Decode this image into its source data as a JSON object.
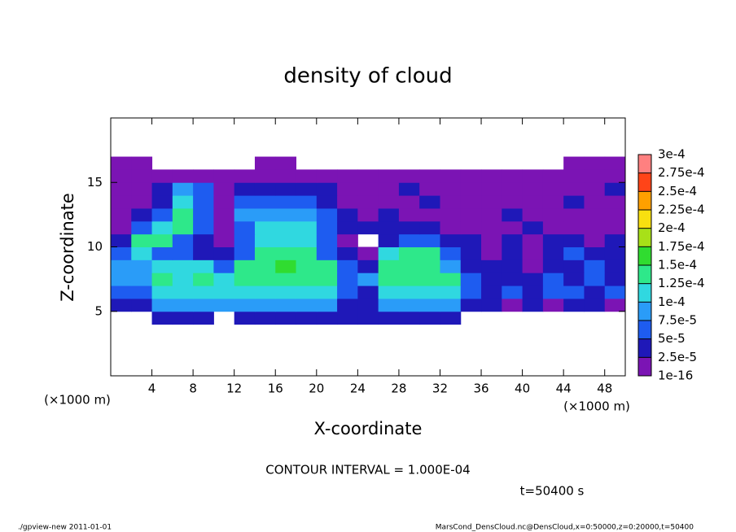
{
  "chart_data": {
    "type": "heatmap",
    "title": "density of cloud",
    "xlabel": "X-coordinate",
    "ylabel": "Z-coordinate",
    "x_unit": "(×1000 m)",
    "y_unit": "(×1000 m)",
    "contour_interval": "CONTOUR INTERVAL = 1.000E-04",
    "time_label": "t=50400 s",
    "footer_left": "./gpview-new  2011-01-01",
    "footer_right": "MarsCond_DensCloud.nc@DensCloud,x=0:50000,z=0:20000,t=50400",
    "xlim": [
      0,
      50
    ],
    "ylim": [
      0,
      20
    ],
    "xticks": [
      4,
      8,
      12,
      16,
      20,
      24,
      28,
      32,
      36,
      40,
      44,
      48
    ],
    "yticks": [
      5,
      10,
      15
    ],
    "levels": [
      {
        "value": 1e-16,
        "label": "1e-16"
      },
      {
        "value": 2.5e-05,
        "label": "2.5e-5"
      },
      {
        "value": 5e-05,
        "label": "5e-5"
      },
      {
        "value": 7.5e-05,
        "label": "7.5e-5"
      },
      {
        "value": 0.0001,
        "label": "1e-4"
      },
      {
        "value": 0.000125,
        "label": "1.25e-4"
      },
      {
        "value": 0.00015,
        "label": "1.5e-4"
      },
      {
        "value": 0.000175,
        "label": "1.75e-4"
      },
      {
        "value": 0.0002,
        "label": "2e-4"
      },
      {
        "value": 0.000225,
        "label": "2.25e-4"
      },
      {
        "value": 0.00025,
        "label": "2.5e-4"
      },
      {
        "value": 0.000275,
        "label": "2.75e-4"
      },
      {
        "value": 0.0003,
        "label": "3e-4"
      }
    ],
    "colors": [
      "#7b14b4",
      "#1f18b8",
      "#1e5cf0",
      "#2a9cf8",
      "#30d8e0",
      "#2ee88a",
      "#30dc30",
      "#a8e018",
      "#f8e010",
      "#ffa000",
      "#ff4418",
      "#ff8080"
    ],
    "x": [
      1,
      3,
      5,
      7,
      9,
      11,
      13,
      15,
      17,
      19,
      21,
      23,
      25,
      27,
      29,
      31,
      33,
      35,
      37,
      39,
      41,
      43,
      45,
      47,
      49
    ],
    "y": [
      4.5,
      5.5,
      6.5,
      7.5,
      8.5,
      9.5,
      10.5,
      11.5,
      12.5,
      13.5,
      14.5,
      15.5,
      16.5
    ],
    "z": [
      [
        null,
        null,
        3e-05,
        3e-05,
        3e-05,
        null,
        3e-05,
        3e-05,
        3e-05,
        3e-05,
        3e-05,
        3e-05,
        3e-05,
        3e-05,
        3e-05,
        3e-05,
        3e-05,
        null,
        null,
        null,
        null,
        null,
        null,
        null,
        null
      ],
      [
        3e-05,
        3e-05,
        9e-05,
        9e-05,
        9e-05,
        9e-05,
        9e-05,
        9e-05,
        9e-05,
        9e-05,
        9e-05,
        3e-05,
        3e-05,
        9e-05,
        9e-05,
        9e-05,
        9e-05,
        3e-05,
        3e-05,
        1e-05,
        3e-05,
        1e-05,
        3e-05,
        3e-05,
        1e-05
      ],
      [
        6e-05,
        6e-05,
        0.00011,
        0.00011,
        0.00011,
        0.00011,
        0.00011,
        0.00011,
        0.00011,
        0.00011,
        0.00011,
        6e-05,
        3e-05,
        0.00011,
        0.00011,
        0.00011,
        0.00011,
        6e-05,
        3e-05,
        6e-05,
        3e-05,
        6e-05,
        6e-05,
        3e-05,
        6e-05
      ],
      [
        9e-05,
        9e-05,
        0.00013,
        0.00011,
        0.00013,
        0.00011,
        0.00013,
        0.00013,
        0.00013,
        0.00013,
        0.00013,
        6e-05,
        9e-05,
        0.00013,
        0.00013,
        0.00013,
        0.00013,
        6e-05,
        3e-05,
        3e-05,
        3e-05,
        6e-05,
        3e-05,
        6e-05,
        3e-05
      ],
      [
        9e-05,
        9e-05,
        0.00011,
        0.00011,
        0.00011,
        6e-05,
        0.00013,
        0.00013,
        0.00016,
        0.00013,
        0.00013,
        6e-05,
        3e-05,
        0.00013,
        0.00013,
        0.00013,
        9e-05,
        3e-05,
        3e-05,
        3e-05,
        1e-05,
        3e-05,
        3e-05,
        6e-05,
        3e-05
      ],
      [
        6e-05,
        0.00011,
        6e-05,
        6e-05,
        3e-05,
        3e-05,
        6e-05,
        0.00013,
        0.00013,
        0.00013,
        6e-05,
        3e-05,
        1e-05,
        0.00011,
        0.00013,
        0.00013,
        6e-05,
        3e-05,
        1e-05,
        3e-05,
        1e-05,
        3e-05,
        6e-05,
        3e-05,
        3e-05
      ],
      [
        3e-05,
        0.00013,
        0.00013,
        6e-05,
        3e-05,
        1e-05,
        6e-05,
        0.00011,
        0.00011,
        0.00011,
        6e-05,
        1e-05,
        null,
        3e-05,
        6e-05,
        6e-05,
        3e-05,
        3e-05,
        1e-05,
        3e-05,
        1e-05,
        3e-05,
        3e-05,
        1e-05,
        3e-05
      ],
      [
        1e-05,
        6e-05,
        0.00011,
        0.00013,
        6e-05,
        1e-05,
        6e-05,
        0.00011,
        0.00011,
        0.00011,
        6e-05,
        3e-05,
        3e-05,
        3e-05,
        3e-05,
        3e-05,
        1e-05,
        1e-05,
        1e-05,
        1e-05,
        3e-05,
        1e-05,
        1e-05,
        1e-05,
        1e-05
      ],
      [
        1e-05,
        3e-05,
        6e-05,
        0.00013,
        6e-05,
        1e-05,
        9e-05,
        9e-05,
        9e-05,
        9e-05,
        6e-05,
        3e-05,
        1e-05,
        3e-05,
        1e-05,
        1e-05,
        1e-05,
        1e-05,
        1e-05,
        3e-05,
        1e-05,
        1e-05,
        1e-05,
        1e-05,
        1e-05
      ],
      [
        1e-05,
        1e-05,
        3e-05,
        0.00011,
        6e-05,
        1e-05,
        6e-05,
        6e-05,
        6e-05,
        6e-05,
        3e-05,
        1e-05,
        1e-05,
        1e-05,
        1e-05,
        3e-05,
        1e-05,
        1e-05,
        1e-05,
        1e-05,
        1e-05,
        1e-05,
        3e-05,
        1e-05,
        1e-05
      ],
      [
        1e-05,
        1e-05,
        3e-05,
        9e-05,
        6e-05,
        1e-05,
        3e-05,
        3e-05,
        3e-05,
        3e-05,
        3e-05,
        1e-05,
        1e-05,
        1e-05,
        3e-05,
        1e-05,
        1e-05,
        1e-05,
        1e-05,
        1e-05,
        1e-05,
        1e-05,
        1e-05,
        1e-05,
        3e-05
      ],
      [
        1e-05,
        1e-05,
        1e-05,
        1e-05,
        1e-05,
        1e-05,
        1e-05,
        1e-05,
        1e-05,
        1e-05,
        1e-05,
        1e-05,
        1e-05,
        1e-05,
        1e-05,
        1e-05,
        1e-05,
        1e-05,
        1e-05,
        1e-05,
        1e-05,
        1e-05,
        1e-05,
        1e-05,
        1e-05
      ],
      [
        1e-05,
        1e-05,
        null,
        null,
        null,
        null,
        null,
        1e-05,
        1e-05,
        null,
        null,
        null,
        null,
        null,
        null,
        null,
        null,
        null,
        null,
        null,
        null,
        null,
        1e-05,
        1e-05,
        1e-05
      ]
    ]
  }
}
